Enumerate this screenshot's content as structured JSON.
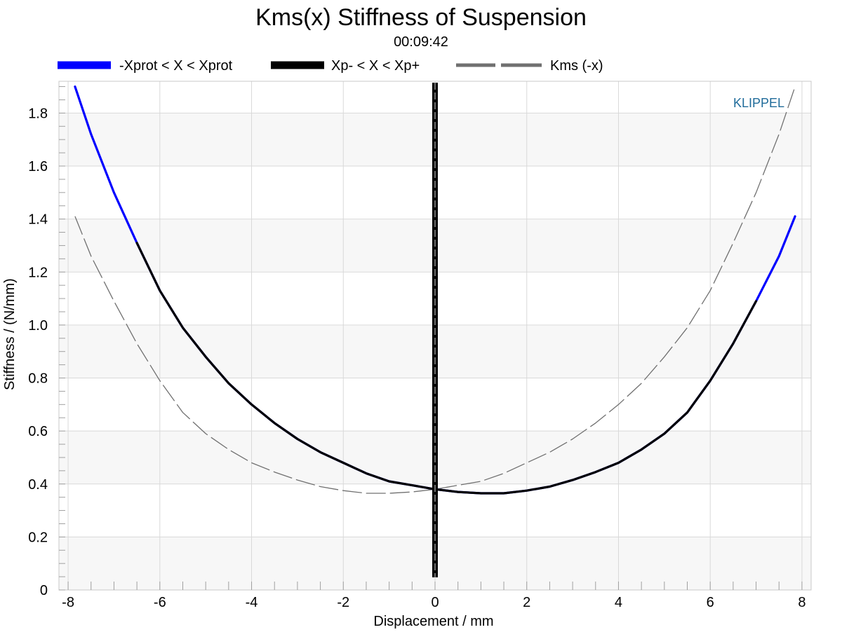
{
  "chart_data": {
    "type": "line",
    "title": "Kms(x) Stiffness of Suspension",
    "subtitle": "00:09:42",
    "xlabel": "Displacement / mm",
    "ylabel": "Stiffness / (N/mm)",
    "xlim": [
      -8.2,
      8.2
    ],
    "ylim": [
      0,
      1.92
    ],
    "x_ticks": [
      -8,
      -6,
      -4,
      -2,
      0,
      2,
      4,
      6,
      8
    ],
    "y_ticks": [
      0,
      0.2,
      0.4,
      0.6,
      0.8,
      1.0,
      1.2,
      1.4,
      1.6,
      1.8
    ],
    "x_tick_labels": [
      "-8",
      "-6",
      "-4",
      "-2",
      "0",
      "2",
      "4",
      "6",
      "8"
    ],
    "y_tick_labels": [
      "0",
      "0.2",
      "0.4",
      "0.6",
      "0.8",
      "1.0",
      "1.2",
      "1.4",
      "1.6",
      "1.8"
    ],
    "grid": true,
    "legend_position": "top",
    "brand_label": "KLIPPEL",
    "brand_color": "#1f6b9a",
    "series": [
      {
        "name": "-Xprot < X < Xprot",
        "color": "#0000ff",
        "style": "solid",
        "x": [
          -7.85,
          -7.5,
          -7.0,
          -6.5,
          -6.0,
          -5.5,
          -5.0,
          -4.5,
          -4.0,
          -3.5,
          -3.0,
          -2.5,
          -2.0,
          -1.5,
          -1.0,
          -0.5,
          0.0,
          0.5,
          1.0,
          1.5,
          2.0,
          2.5,
          3.0,
          3.5,
          4.0,
          4.5,
          5.0,
          5.5,
          6.0,
          6.5,
          7.0,
          7.5,
          7.85
        ],
        "y": [
          1.9,
          1.72,
          1.5,
          1.31,
          1.13,
          0.99,
          0.88,
          0.78,
          0.7,
          0.63,
          0.57,
          0.52,
          0.48,
          0.44,
          0.41,
          0.395,
          0.38,
          0.37,
          0.365,
          0.365,
          0.375,
          0.39,
          0.415,
          0.445,
          0.48,
          0.53,
          0.59,
          0.67,
          0.79,
          0.93,
          1.09,
          1.26,
          1.41
        ]
      },
      {
        "name": "Xp- < X < Xp+",
        "color": "#000000",
        "style": "solid",
        "x": [
          -6.5,
          -6.0,
          -5.5,
          -5.0,
          -4.5,
          -4.0,
          -3.5,
          -3.0,
          -2.5,
          -2.0,
          -1.5,
          -1.0,
          -0.5,
          0.0,
          0.5,
          1.0,
          1.5,
          2.0,
          2.5,
          3.0,
          3.5,
          4.0,
          4.5,
          5.0,
          5.5,
          6.0,
          6.5,
          7.0
        ],
        "y": [
          1.31,
          1.13,
          0.99,
          0.88,
          0.78,
          0.7,
          0.63,
          0.57,
          0.52,
          0.48,
          0.44,
          0.41,
          0.395,
          0.38,
          0.37,
          0.365,
          0.365,
          0.375,
          0.39,
          0.415,
          0.445,
          0.48,
          0.53,
          0.59,
          0.67,
          0.79,
          0.93,
          1.09
        ]
      },
      {
        "name": "Kms (-x)",
        "color": "#707070",
        "style": "dashed",
        "x": [
          -7.85,
          -7.5,
          -7.0,
          -6.5,
          -6.0,
          -5.5,
          -5.0,
          -4.5,
          -4.0,
          -3.5,
          -3.0,
          -2.5,
          -2.0,
          -1.5,
          -1.0,
          -0.5,
          0.0,
          0.5,
          1.0,
          1.5,
          2.0,
          2.5,
          3.0,
          3.5,
          4.0,
          4.5,
          5.0,
          5.5,
          6.0,
          6.5,
          7.0,
          7.5,
          7.85
        ],
        "y": [
          1.41,
          1.26,
          1.09,
          0.93,
          0.79,
          0.67,
          0.59,
          0.53,
          0.48,
          0.445,
          0.415,
          0.39,
          0.375,
          0.365,
          0.365,
          0.37,
          0.38,
          0.395,
          0.41,
          0.44,
          0.48,
          0.52,
          0.57,
          0.63,
          0.7,
          0.78,
          0.88,
          0.99,
          1.13,
          1.31,
          1.5,
          1.72,
          1.9
        ]
      }
    ],
    "marker_line": {
      "x": 0,
      "color": "#000000"
    }
  }
}
